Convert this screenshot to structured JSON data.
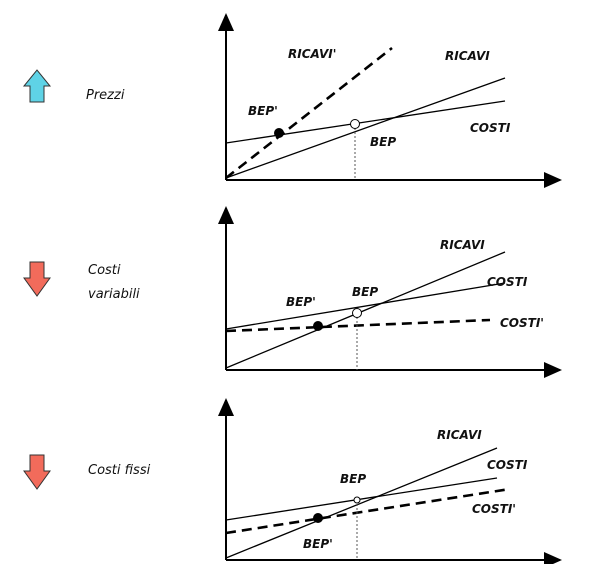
{
  "panels": [
    {
      "label": [
        "Prezzi"
      ],
      "lines": [
        "RICAVI'",
        "RICAVI",
        "COSTI"
      ],
      "points": [
        "BEP'",
        "BEP"
      ]
    },
    {
      "label": [
        "Costi",
        "variabili"
      ],
      "lines": [
        "RICAVI",
        "COSTI",
        "COSTI'"
      ],
      "points": [
        "BEP'",
        "BEP"
      ]
    },
    {
      "label": [
        "Costi fissi"
      ],
      "lines": [
        "RICAVI",
        "COSTI",
        "COSTI'"
      ],
      "points": [
        "BEP",
        "BEP'"
      ]
    }
  ]
}
